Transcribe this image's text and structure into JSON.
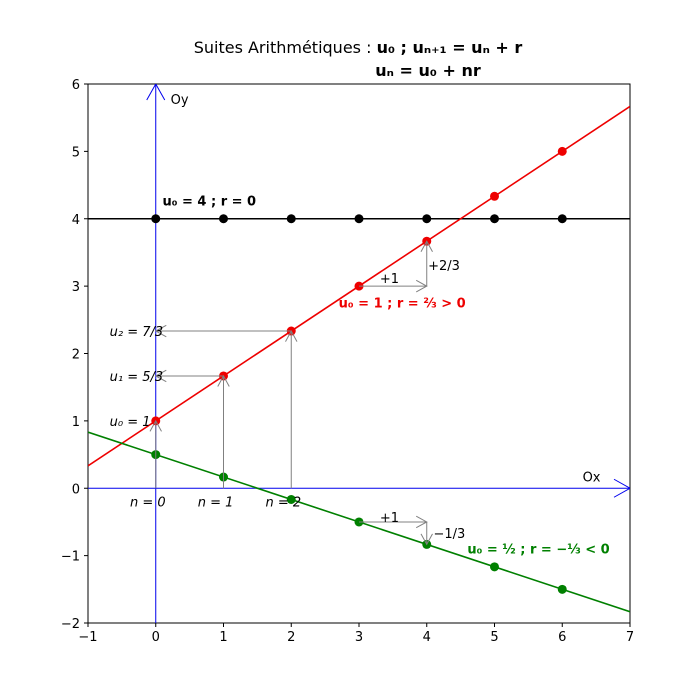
{
  "chart_data": {
    "type": "line",
    "title": {
      "prefix": "Suites Arithmétiques : ",
      "line1_math": "u₀ ; uₙ₊₁ = uₙ + r",
      "line2_math": "uₙ = u₀ + nr"
    },
    "xlim": [
      -1,
      7
    ],
    "ylim": [
      -2,
      6
    ],
    "xticks": [
      -1,
      0,
      1,
      2,
      3,
      4,
      5,
      6,
      7
    ],
    "yticks": [
      -2,
      -1,
      0,
      1,
      2,
      3,
      4,
      5,
      6
    ],
    "axis_labels": {
      "ox": "Ox",
      "oy": "Oy"
    },
    "series": [
      {
        "u0": 4,
        "r": 0,
        "color": "#000000",
        "label": "u₀ = 4 ; r = 0",
        "points": [
          [
            0,
            4
          ],
          [
            1,
            4
          ],
          [
            2,
            4
          ],
          [
            3,
            4
          ],
          [
            4,
            4
          ],
          [
            5,
            4
          ],
          [
            6,
            4
          ]
        ]
      },
      {
        "u0": 1,
        "r": 0.6667,
        "color": "#ee0000",
        "label": "u₀ = 1 ; r = ⅔ > 0",
        "points": [
          [
            0,
            1
          ],
          [
            1,
            1.6667
          ],
          [
            2,
            2.3333
          ],
          [
            3,
            3
          ],
          [
            4,
            3.6667
          ],
          [
            5,
            4.3333
          ],
          [
            6,
            5
          ]
        ]
      },
      {
        "u0": 0.5,
        "r": -0.3333,
        "color": "#008000",
        "label": "u₀ = ½ ; r = −⅓ < 0",
        "points": [
          [
            0,
            0.5
          ],
          [
            1,
            0.1667
          ],
          [
            2,
            -0.1667
          ],
          [
            3,
            -0.5
          ],
          [
            4,
            -0.8333
          ],
          [
            5,
            -1.1667
          ],
          [
            6,
            -1.5
          ]
        ]
      }
    ],
    "u_labels": [
      {
        "text": "u₀ = 1",
        "y": 1
      },
      {
        "text": "u₁ = 5/3",
        "y": 1.6667
      },
      {
        "text": "u₂ = 7/3",
        "y": 2.3333
      }
    ],
    "n_labels": [
      {
        "text": "n = 0",
        "x": 0
      },
      {
        "text": "n = 1",
        "x": 1
      },
      {
        "text": "n = 2",
        "x": 2
      }
    ],
    "step_annotations": {
      "red_run": "+1",
      "red_rise": "+2/3",
      "green_run": "+1",
      "green_rise": "−1/3"
    }
  }
}
